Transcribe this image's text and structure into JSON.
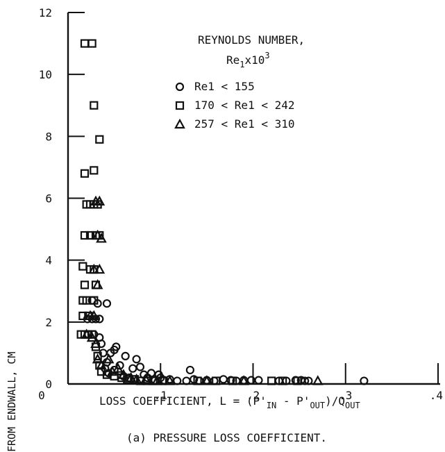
{
  "chart_data": {
    "type": "scatter",
    "title": "(a) PRESSURE LOSS COEFFICIENT.",
    "xlabel": "LOSS COEFFICIENT, L = (P'IN - P'OUT)/QOUT",
    "ylabel": "FROM ENDWALL, CM",
    "xlim": [
      0,
      0.4
    ],
    "ylim": [
      0,
      12
    ],
    "x_ticks": [
      "0",
      ".1",
      ".2",
      ".3",
      ".4"
    ],
    "y_ticks": [
      "0",
      "2",
      "4",
      "6",
      "8",
      "10",
      "12"
    ],
    "legend": {
      "title_line1": "REYNOLDS NUMBER,",
      "title_line2": "Re1x10^3",
      "position": "top-right"
    },
    "series": [
      {
        "name": "Re1 < 155",
        "marker": "circle",
        "points": [
          [
            0.021,
            2.1
          ],
          [
            0.026,
            2.1
          ],
          [
            0.03,
            2.1
          ],
          [
            0.034,
            2.1
          ],
          [
            0.032,
            2.6
          ],
          [
            0.042,
            2.6
          ],
          [
            0.026,
            2.7
          ],
          [
            0.022,
            1.6
          ],
          [
            0.028,
            1.6
          ],
          [
            0.034,
            1.5
          ],
          [
            0.036,
            1.3
          ],
          [
            0.038,
            1.0
          ],
          [
            0.042,
            0.7
          ],
          [
            0.046,
            1.0
          ],
          [
            0.05,
            1.1
          ],
          [
            0.052,
            1.2
          ],
          [
            0.04,
            0.5
          ],
          [
            0.044,
            0.35
          ],
          [
            0.05,
            0.45
          ],
          [
            0.056,
            0.6
          ],
          [
            0.062,
            0.9
          ],
          [
            0.06,
            0.25
          ],
          [
            0.066,
            0.2
          ],
          [
            0.07,
            0.5
          ],
          [
            0.074,
            0.8
          ],
          [
            0.078,
            0.55
          ],
          [
            0.082,
            0.3
          ],
          [
            0.086,
            0.2
          ],
          [
            0.09,
            0.35
          ],
          [
            0.094,
            0.12
          ],
          [
            0.098,
            0.3
          ],
          [
            0.1,
            0.2
          ],
          [
            0.104,
            0.12
          ],
          [
            0.11,
            0.15
          ],
          [
            0.118,
            0.1
          ],
          [
            0.128,
            0.1
          ],
          [
            0.132,
            0.45
          ],
          [
            0.136,
            0.15
          ],
          [
            0.142,
            0.1
          ],
          [
            0.15,
            0.12
          ],
          [
            0.158,
            0.1
          ],
          [
            0.168,
            0.15
          ],
          [
            0.176,
            0.12
          ],
          [
            0.182,
            0.1
          ],
          [
            0.19,
            0.12
          ],
          [
            0.198,
            0.12
          ],
          [
            0.206,
            0.12
          ],
          [
            0.228,
            0.1
          ],
          [
            0.236,
            0.1
          ],
          [
            0.246,
            0.12
          ],
          [
            0.252,
            0.12
          ],
          [
            0.256,
            0.1
          ],
          [
            0.26,
            0.1
          ],
          [
            0.32,
            0.1
          ]
        ]
      },
      {
        "name": "170 < Re1 < 242",
        "marker": "square",
        "points": [
          [
            0.018,
            11.0
          ],
          [
            0.026,
            11.0
          ],
          [
            0.028,
            9.0
          ],
          [
            0.034,
            7.9
          ],
          [
            0.018,
            6.8
          ],
          [
            0.028,
            6.9
          ],
          [
            0.02,
            5.8
          ],
          [
            0.024,
            5.8
          ],
          [
            0.028,
            5.8
          ],
          [
            0.032,
            5.8
          ],
          [
            0.018,
            4.8
          ],
          [
            0.024,
            4.8
          ],
          [
            0.03,
            4.8
          ],
          [
            0.034,
            4.8
          ],
          [
            0.016,
            3.8
          ],
          [
            0.024,
            3.7
          ],
          [
            0.028,
            3.7
          ],
          [
            0.018,
            3.2
          ],
          [
            0.03,
            3.2
          ],
          [
            0.016,
            2.7
          ],
          [
            0.02,
            2.7
          ],
          [
            0.028,
            2.7
          ],
          [
            0.016,
            2.2
          ],
          [
            0.022,
            2.2
          ],
          [
            0.014,
            1.6
          ],
          [
            0.018,
            1.6
          ],
          [
            0.022,
            1.6
          ],
          [
            0.026,
            1.6
          ],
          [
            0.03,
            1.2
          ],
          [
            0.032,
            0.9
          ],
          [
            0.034,
            0.6
          ],
          [
            0.036,
            0.4
          ],
          [
            0.042,
            0.3
          ],
          [
            0.05,
            0.25
          ],
          [
            0.058,
            0.2
          ],
          [
            0.064,
            0.15
          ],
          [
            0.072,
            0.15
          ],
          [
            0.078,
            0.1
          ],
          [
            0.086,
            0.1
          ],
          [
            0.092,
            0.1
          ],
          [
            0.102,
            0.1
          ],
          [
            0.14,
            0.1
          ],
          [
            0.16,
            0.1
          ],
          [
            0.178,
            0.1
          ],
          [
            0.22,
            0.1
          ],
          [
            0.232,
            0.1
          ],
          [
            0.248,
            0.1
          ]
        ]
      },
      {
        "name": "257 < Re1 < 310",
        "marker": "triangle",
        "points": [
          [
            0.03,
            5.9
          ],
          [
            0.034,
            5.9
          ],
          [
            0.032,
            4.8
          ],
          [
            0.036,
            4.7
          ],
          [
            0.028,
            3.7
          ],
          [
            0.034,
            3.7
          ],
          [
            0.032,
            3.2
          ],
          [
            0.024,
            2.2
          ],
          [
            0.028,
            2.2
          ],
          [
            0.02,
            1.6
          ],
          [
            0.026,
            1.5
          ],
          [
            0.03,
            1.3
          ],
          [
            0.032,
            0.8
          ],
          [
            0.036,
            0.6
          ],
          [
            0.044,
            0.8
          ],
          [
            0.048,
            0.4
          ],
          [
            0.054,
            0.5
          ],
          [
            0.06,
            0.3
          ],
          [
            0.068,
            0.2
          ],
          [
            0.074,
            0.15
          ],
          [
            0.084,
            0.15
          ],
          [
            0.096,
            0.1
          ],
          [
            0.11,
            0.1
          ],
          [
            0.15,
            0.1
          ],
          [
            0.19,
            0.1
          ],
          [
            0.27,
            0.1
          ]
        ]
      }
    ]
  }
}
